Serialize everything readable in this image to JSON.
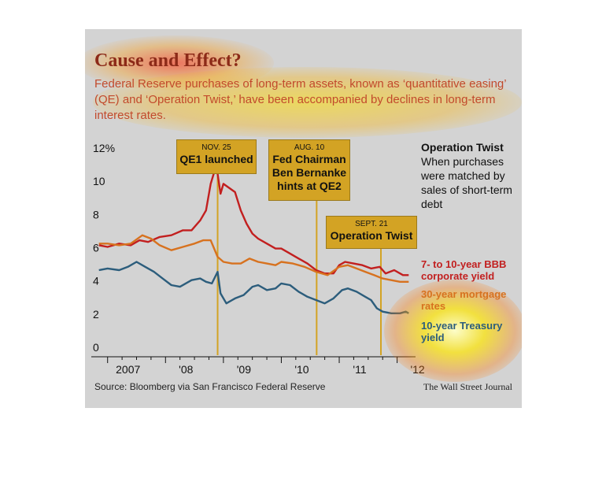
{
  "title": "Cause and Effect?",
  "subtitle": "Federal Reserve purchases of long-term assets, known as ‘quantitative easing’ (QE) and ‘Operation Twist,’ have been accompanied by declines in long-term interest rates.",
  "source": "Source: Bloomberg via San Francisco Federal Reserve",
  "credit": "The Wall Street Journal",
  "side_note": {
    "heading": "Operation Twist",
    "text": "When purchases were matched by sales of short-term debt"
  },
  "annotations": [
    {
      "date": "NOV. 25",
      "text": "QE1 launched",
      "x": 2008.9
    },
    {
      "date": "AUG. 10",
      "text": "Fed Chairman Ben Bernanke hints at QE2",
      "x": 2010.61
    },
    {
      "date": "SEPT. 21",
      "text": "Operation Twist",
      "x": 2011.72
    }
  ],
  "colors": {
    "bbb": "#c21f1f",
    "mortgage": "#d7721f",
    "treasury": "#2c5d7c",
    "event_line": "#d3a324",
    "background": "#d3d3d3",
    "title": "#8c2a18"
  },
  "chart_data": {
    "type": "line",
    "title": "Cause and Effect?",
    "xlabel": "",
    "ylabel": "",
    "y_unit": "%",
    "xlim": [
      2006.8,
      2012.25
    ],
    "ylim": [
      0,
      12
    ],
    "y_ticks": [
      0,
      2,
      4,
      6,
      8,
      10,
      12
    ],
    "y_tick_labels": [
      "0",
      "2",
      "4",
      "6",
      "8",
      "10",
      "12%"
    ],
    "x_ticks": [
      2007,
      2008,
      2009,
      2010,
      2011,
      2012
    ],
    "x_tick_labels": [
      "2007",
      "'08",
      "'09",
      "'10",
      "'11",
      "'12"
    ],
    "grid": false,
    "legend": "right-side labels",
    "series": [
      {
        "name": "7- to 10-year BBB corporate yield",
        "key": "bbb",
        "x": [
          2006.85,
          2007.0,
          2007.2,
          2007.4,
          2007.55,
          2007.7,
          2007.9,
          2008.1,
          2008.3,
          2008.45,
          2008.6,
          2008.7,
          2008.78,
          2008.85,
          2008.9,
          2008.95,
          2009.0,
          2009.08,
          2009.2,
          2009.3,
          2009.4,
          2009.5,
          2009.6,
          2009.75,
          2009.9,
          2010.0,
          2010.15,
          2010.3,
          2010.45,
          2010.6,
          2010.75,
          2010.9,
          2011.0,
          2011.1,
          2011.25,
          2011.4,
          2011.55,
          2011.7,
          2011.8,
          2011.95,
          2012.1,
          2012.2
        ],
        "values": [
          6.1,
          6.0,
          6.2,
          6.1,
          6.4,
          6.3,
          6.6,
          6.7,
          7.0,
          7.0,
          7.6,
          8.2,
          9.8,
          10.6,
          10.4,
          9.2,
          9.8,
          9.6,
          9.3,
          8.2,
          7.4,
          6.8,
          6.5,
          6.2,
          5.9,
          5.9,
          5.6,
          5.3,
          5.0,
          4.6,
          4.4,
          4.4,
          4.9,
          5.1,
          5.0,
          4.9,
          4.7,
          4.8,
          4.4,
          4.6,
          4.3,
          4.3
        ]
      },
      {
        "name": "30-year mortgage rates",
        "key": "mortgage",
        "x": [
          2006.85,
          2007.0,
          2007.2,
          2007.4,
          2007.6,
          2007.75,
          2007.9,
          2008.1,
          2008.3,
          2008.5,
          2008.65,
          2008.78,
          2008.9,
          2009.0,
          2009.15,
          2009.3,
          2009.45,
          2009.6,
          2009.75,
          2009.9,
          2010.0,
          2010.2,
          2010.4,
          2010.6,
          2010.8,
          2011.0,
          2011.15,
          2011.3,
          2011.45,
          2011.6,
          2011.75,
          2011.9,
          2012.05,
          2012.2
        ],
        "values": [
          6.2,
          6.2,
          6.1,
          6.2,
          6.7,
          6.5,
          6.1,
          5.8,
          6.0,
          6.2,
          6.4,
          6.4,
          5.4,
          5.1,
          5.0,
          5.0,
          5.3,
          5.1,
          5.0,
          4.9,
          5.1,
          5.0,
          4.8,
          4.5,
          4.3,
          4.8,
          4.9,
          4.7,
          4.5,
          4.3,
          4.1,
          4.0,
          3.9,
          3.9
        ]
      },
      {
        "name": "10-year Treasury yield",
        "key": "treasury",
        "x": [
          2006.85,
          2007.0,
          2007.2,
          2007.35,
          2007.5,
          2007.65,
          2007.8,
          2007.95,
          2008.1,
          2008.25,
          2008.45,
          2008.6,
          2008.7,
          2008.8,
          2008.9,
          2008.95,
          2009.05,
          2009.2,
          2009.35,
          2009.5,
          2009.6,
          2009.75,
          2009.9,
          2010.0,
          2010.15,
          2010.3,
          2010.45,
          2010.6,
          2010.75,
          2010.9,
          2011.05,
          2011.15,
          2011.3,
          2011.45,
          2011.55,
          2011.65,
          2011.75,
          2011.9,
          2012.05,
          2012.15,
          2012.2
        ],
        "values": [
          4.6,
          4.7,
          4.6,
          4.8,
          5.1,
          4.8,
          4.5,
          4.1,
          3.7,
          3.6,
          4.0,
          4.1,
          3.9,
          3.8,
          4.5,
          3.2,
          2.6,
          2.9,
          3.1,
          3.6,
          3.7,
          3.4,
          3.5,
          3.8,
          3.7,
          3.3,
          3.0,
          2.8,
          2.6,
          2.9,
          3.4,
          3.5,
          3.3,
          3.0,
          2.8,
          2.3,
          2.1,
          2.0,
          2.0,
          2.1,
          2.0
        ]
      }
    ]
  }
}
